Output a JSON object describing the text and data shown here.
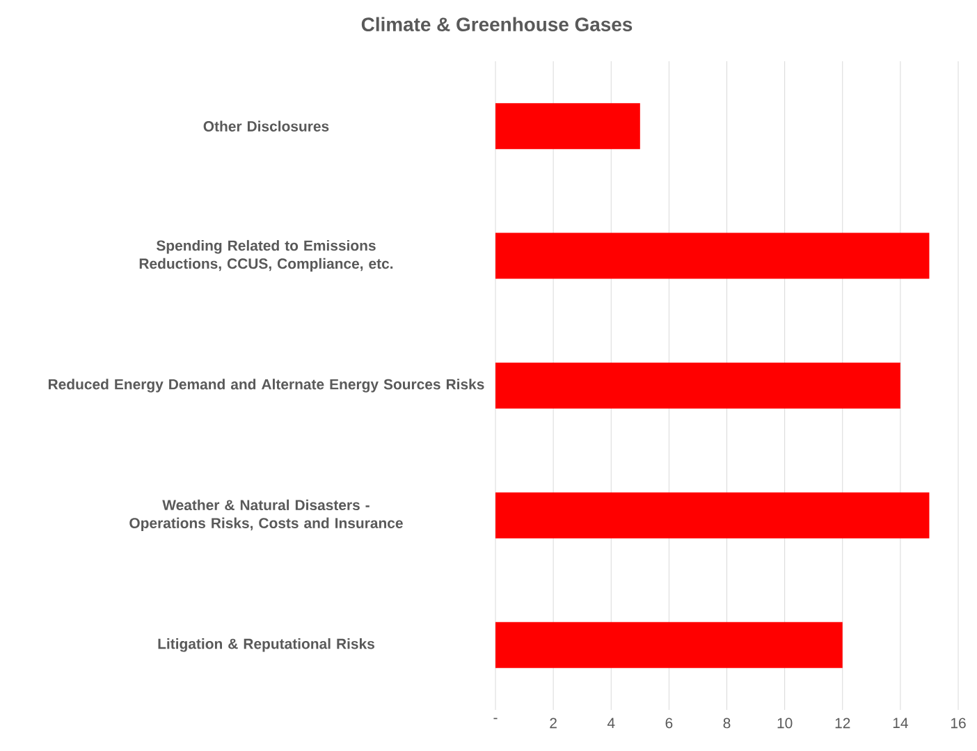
{
  "chart_data": {
    "type": "bar",
    "orientation": "horizontal",
    "title": "Climate & Greenhouse Gases",
    "categories": [
      "Other Disclosures",
      "Spending Related to Emissions Reductions, CCUS, Compliance, etc.",
      "Reduced Energy Demand and Alternate Energy Sources Risks",
      "Weather & Natural Disasters - Operations Risks, Costs and Insurance",
      "Litigation & Reputational Risks"
    ],
    "values": [
      5,
      15,
      14,
      15,
      12
    ],
    "color": "#ff0000",
    "xlim": [
      0,
      16
    ],
    "xticks": [
      {
        "value": 0,
        "label": "-"
      },
      2,
      4,
      6,
      8,
      10,
      12,
      14,
      16
    ],
    "grid": "x"
  }
}
